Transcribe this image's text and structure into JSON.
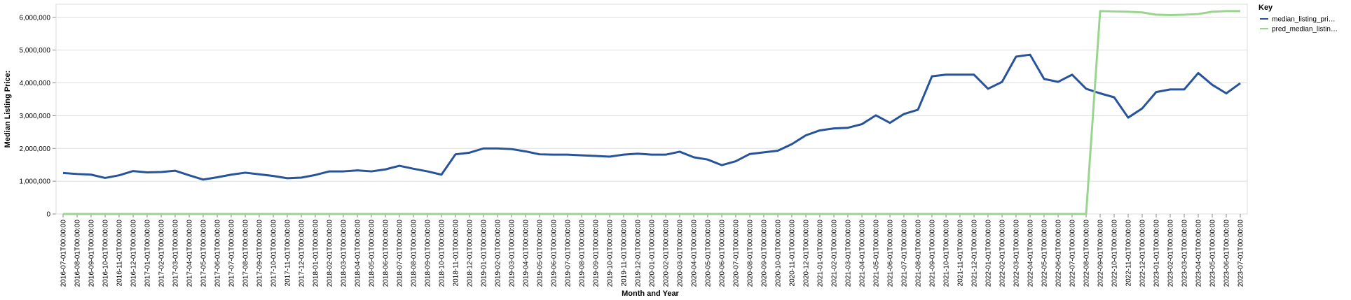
{
  "chart_data": {
    "type": "line",
    "x_label": "Month and Year",
    "y_label": "Median Listing Price:",
    "legend_title": "Key",
    "legend": "right",
    "grid": true,
    "categories": [
      "2016-07-01T00:00:00",
      "2016-08-01T00:00:00",
      "2016-09-01T00:00:00",
      "2016-10-01T00:00:00",
      "2016-11-01T00:00:00",
      "2016-12-01T00:00:00",
      "2017-01-01T00:00:00",
      "2017-02-01T00:00:00",
      "2017-03-01T00:00:00",
      "2017-04-01T00:00:00",
      "2017-05-01T00:00:00",
      "2017-06-01T00:00:00",
      "2017-07-01T00:00:00",
      "2017-08-01T00:00:00",
      "2017-09-01T00:00:00",
      "2017-10-01T00:00:00",
      "2017-11-01T00:00:00",
      "2017-12-01T00:00:00",
      "2018-01-01T00:00:00",
      "2018-02-01T00:00:00",
      "2018-03-01T00:00:00",
      "2018-04-01T00:00:00",
      "2018-05-01T00:00:00",
      "2018-06-01T00:00:00",
      "2018-07-01T00:00:00",
      "2018-08-01T00:00:00",
      "2018-09-01T00:00:00",
      "2018-10-01T00:00:00",
      "2018-11-01T00:00:00",
      "2018-12-01T00:00:00",
      "2019-01-01T00:00:00",
      "2019-02-01T00:00:00",
      "2019-03-01T00:00:00",
      "2019-04-01T00:00:00",
      "2019-05-01T00:00:00",
      "2019-06-01T00:00:00",
      "2019-07-01T00:00:00",
      "2019-08-01T00:00:00",
      "2019-09-01T00:00:00",
      "2019-10-01T00:00:00",
      "2019-11-01T00:00:00",
      "2019-12-01T00:00:00",
      "2020-01-01T00:00:00",
      "2020-02-01T00:00:00",
      "2020-03-01T00:00:00",
      "2020-04-01T00:00:00",
      "2020-05-01T00:00:00",
      "2020-06-01T00:00:00",
      "2020-07-01T00:00:00",
      "2020-08-01T00:00:00",
      "2020-09-01T00:00:00",
      "2020-10-01T00:00:00",
      "2020-11-01T00:00:00",
      "2020-12-01T00:00:00",
      "2021-01-01T00:00:00",
      "2021-02-01T00:00:00",
      "2021-03-01T00:00:00",
      "2021-04-01T00:00:00",
      "2021-05-01T00:00:00",
      "2021-06-01T00:00:00",
      "2021-07-01T00:00:00",
      "2021-08-01T00:00:00",
      "2021-09-01T00:00:00",
      "2021-10-01T00:00:00",
      "2021-11-01T00:00:00",
      "2021-12-01T00:00:00",
      "2022-01-01T00:00:00",
      "2022-02-01T00:00:00",
      "2022-03-01T00:00:00",
      "2022-04-01T00:00:00",
      "2022-05-01T00:00:00",
      "2022-06-01T00:00:00",
      "2022-07-01T00:00:00",
      "2022-08-01T00:00:00",
      "2022-09-01T00:00:00",
      "2022-10-01T00:00:00",
      "2022-11-01T00:00:00",
      "2022-12-01T00:00:00",
      "2023-01-01T00:00:00",
      "2023-02-01T00:00:00",
      "2023-03-01T00:00:00",
      "2023-04-01T00:00:00",
      "2023-05-01T00:00:00",
      "2023-06-01T00:00:00",
      "2023-07-01T00:00:00"
    ],
    "series": [
      {
        "name": "median_listing_pri…",
        "color": "#27539b",
        "values": [
          1250000,
          1220000,
          1200000,
          1100000,
          1180000,
          1310000,
          1270000,
          1280000,
          1320000,
          1180000,
          1050000,
          1120000,
          1200000,
          1260000,
          1210000,
          1160000,
          1090000,
          1110000,
          1190000,
          1300000,
          1300000,
          1330000,
          1300000,
          1360000,
          1470000,
          1380000,
          1300000,
          1200000,
          1820000,
          1870000,
          2000000,
          2000000,
          1980000,
          1910000,
          1820000,
          1810000,
          1810000,
          1790000,
          1770000,
          1750000,
          1810000,
          1840000,
          1810000,
          1810000,
          1900000,
          1730000,
          1660000,
          1490000,
          1610000,
          1830000,
          1880000,
          1930000,
          2130000,
          2400000,
          2550000,
          2610000,
          2630000,
          2740000,
          3010000,
          2780000,
          3050000,
          3180000,
          4200000,
          4250000,
          4250000,
          4250000,
          3820000,
          4030000,
          4800000,
          4860000,
          4120000,
          4030000,
          4250000,
          3820000,
          3680000,
          3560000,
          2940000,
          3220000,
          3720000,
          3800000,
          3800000,
          4300000,
          3940000,
          3680000,
          3990000
        ]
      },
      {
        "name": "pred_median_listin…",
        "color": "#9ad58f",
        "values": [
          0,
          0,
          0,
          0,
          0,
          0,
          0,
          0,
          0,
          0,
          0,
          0,
          0,
          0,
          0,
          0,
          0,
          0,
          0,
          0,
          0,
          0,
          0,
          0,
          0,
          0,
          0,
          0,
          0,
          0,
          0,
          0,
          0,
          0,
          0,
          0,
          0,
          0,
          0,
          0,
          0,
          0,
          0,
          0,
          0,
          0,
          0,
          0,
          0,
          0,
          0,
          0,
          0,
          0,
          0,
          0,
          0,
          0,
          0,
          0,
          0,
          0,
          0,
          0,
          0,
          0,
          0,
          0,
          0,
          0,
          0,
          0,
          0,
          0,
          6190000,
          6180000,
          6170000,
          6150000,
          6080000,
          6070000,
          6080000,
          6100000,
          6170000,
          6190000,
          6190000
        ]
      }
    ],
    "ylim": [
      0,
      6400000
    ],
    "yticks": [
      0,
      {
        "value": 1000000,
        "label": "1,000,000"
      },
      {
        "value": 2000000,
        "label": "2,000,000"
      },
      {
        "value": 3000000,
        "label": "3,000,000"
      },
      {
        "value": 4000000,
        "label": "4,000,000"
      },
      {
        "value": 5000000,
        "label": "5,000,000"
      },
      {
        "value": 6000000,
        "label": "6,000,000"
      }
    ]
  }
}
